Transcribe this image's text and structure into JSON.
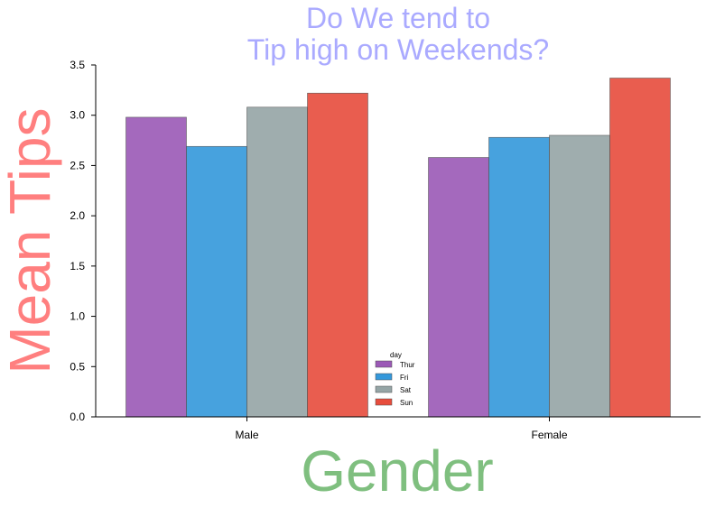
{
  "chart_data": {
    "type": "bar",
    "title_lines": [
      "Do We tend to",
      "Tip high on Weekends?"
    ],
    "title_color": "#AAAAFF",
    "xlabel": "Gender",
    "xlabel_color": "#7FBF7F",
    "ylabel": "Mean Tips",
    "ylabel_color": "#FF7F7F",
    "categories": [
      "Male",
      "Female"
    ],
    "ylim": [
      0,
      3.5
    ],
    "yticks": [
      "0.0",
      "0.5",
      "1.0",
      "1.5",
      "2.0",
      "2.5",
      "3.0",
      "3.5"
    ],
    "grid": false,
    "legend": {
      "title": "day",
      "placement": "bottom-center"
    },
    "series": [
      {
        "name": "Thur",
        "color": "#9B59B6",
        "values": [
          2.98,
          2.58
        ]
      },
      {
        "name": "Fri",
        "color": "#3498DB",
        "values": [
          2.69,
          2.78
        ]
      },
      {
        "name": "Sat",
        "color": "#95A5A6",
        "values": [
          3.08,
          2.8
        ]
      },
      {
        "name": "Sun",
        "color": "#E74C3C",
        "values": [
          3.22,
          3.37
        ]
      }
    ]
  }
}
